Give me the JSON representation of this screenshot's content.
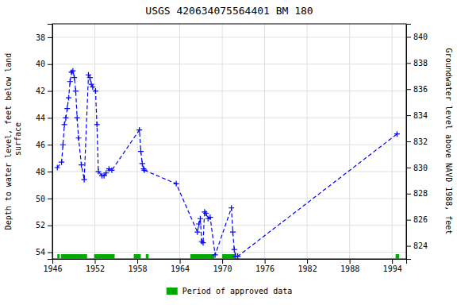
{
  "chart_data": {
    "type": "line",
    "title": "USGS 420634075564401 BM 180",
    "y_label": "Depth to water level, feet below land\n surface",
    "y2_label": "Groundwater level above NAVD 1988, feet",
    "xlim": [
      1946,
      1996
    ],
    "xticks": [
      1946,
      1952,
      1958,
      1964,
      1970,
      1976,
      1982,
      1988,
      1994
    ],
    "ylim": [
      54.5,
      37
    ],
    "yticks": [
      38,
      40,
      42,
      44,
      46,
      48,
      50,
      52,
      54
    ],
    "y2lim": [
      823,
      841
    ],
    "y2ticks": [
      824,
      826,
      828,
      830,
      832,
      834,
      836,
      838,
      840
    ],
    "grid": true,
    "x": [
      1946.7,
      1947.3,
      1947.5,
      1947.7,
      1947.9,
      1948.1,
      1948.3,
      1948.5,
      1948.7,
      1948.9,
      1949.1,
      1949.3,
      1949.5,
      1949.7,
      1950.1,
      1950.5,
      1951.1,
      1951.3,
      1951.5,
      1951.7,
      1952.1,
      1952.3,
      1952.5,
      1953.0,
      1953.3,
      1953.6,
      1954.0,
      1954.4,
      1958.3,
      1958.5,
      1958.7,
      1958.9,
      1959.0,
      1963.5,
      1966.5,
      1966.7,
      1966.9,
      1967.1,
      1967.3,
      1967.5,
      1967.7,
      1968.0,
      1968.3,
      1969.0,
      1971.3,
      1971.5,
      1971.7,
      1971.9,
      1972.2,
      1994.7
    ],
    "series": [
      {
        "color": "#0000ff",
        "line_style": "dashed",
        "marker": "+",
        "values": [
          47.7,
          47.3,
          46.0,
          44.5,
          44.0,
          43.3,
          42.5,
          41.3,
          40.6,
          40.5,
          41.0,
          42.0,
          44.0,
          45.5,
          47.5,
          48.6,
          40.8,
          41.0,
          41.5,
          41.7,
          42.0,
          44.5,
          48.0,
          48.3,
          48.3,
          48.1,
          47.8,
          47.9,
          44.9,
          46.5,
          47.4,
          47.8,
          47.9,
          48.9,
          52.5,
          51.9,
          51.5,
          53.2,
          53.3,
          51.0,
          51.1,
          51.5,
          51.4,
          54.2,
          50.7,
          52.5,
          53.8,
          54.3,
          54.3,
          45.2
        ]
      }
    ],
    "spans": [
      {
        "name": "Period of approved data",
        "color": "#00aa00",
        "ranges": [
          [
            1946.7,
            1947.0
          ],
          [
            1947.2,
            1950.9
          ],
          [
            1951.9,
            1954.8
          ],
          [
            1957.5,
            1958.5
          ],
          [
            1959.2,
            1959.6
          ],
          [
            1965.5,
            1968.9
          ],
          [
            1970.0,
            1971.8
          ],
          [
            1994.5,
            1995.0
          ]
        ]
      }
    ]
  }
}
